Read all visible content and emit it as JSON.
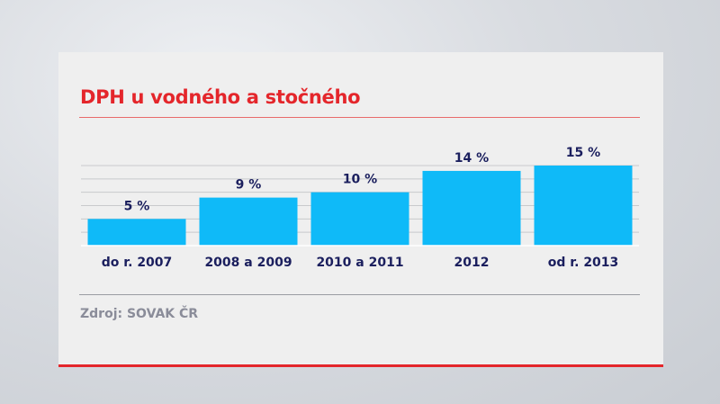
{
  "chart_data": {
    "type": "bar",
    "title": "DPH u vodného a stočného",
    "categories": [
      "do r. 2007",
      "2008 a 2009",
      "2010 a 2011",
      "2012",
      "od r. 2013"
    ],
    "values": [
      5,
      9,
      10,
      14,
      15
    ],
    "data_labels": [
      "5 %",
      "9 %",
      "10 %",
      "14 %",
      "15 %"
    ],
    "xlabel": "",
    "ylabel": "",
    "ylim": [
      0,
      15
    ],
    "grid": true,
    "source": "Zdroj: SOVAK ČR",
    "colors": {
      "bar": "#0fbaf8",
      "title": "#e4262b",
      "label": "#1b1f5e"
    }
  }
}
